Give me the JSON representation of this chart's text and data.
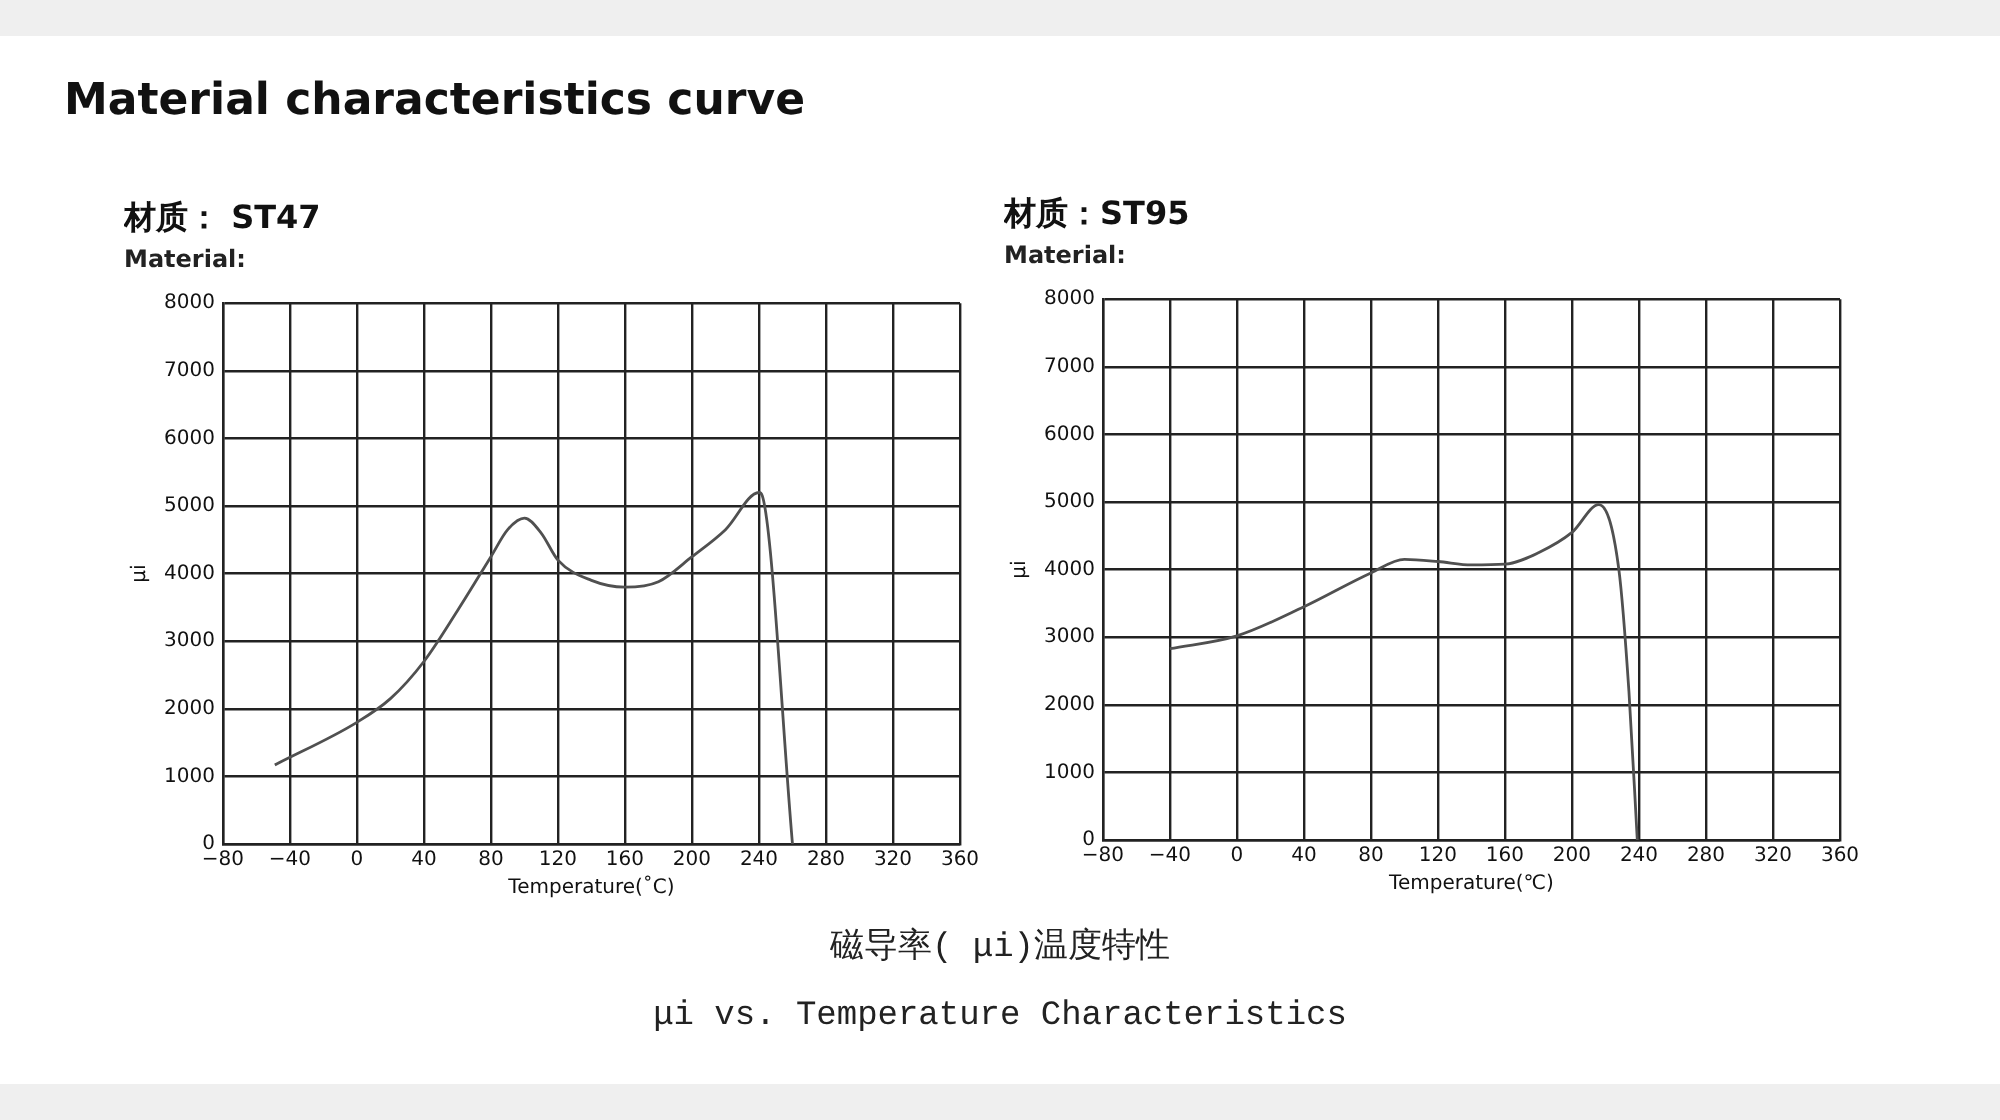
{
  "chart_data": [
    {
      "type": "other",
      "title": "Material characteristics curve"
    },
    {
      "type": "line",
      "title": "材质： ST47",
      "subtitle": "Material:",
      "xlabel": "Temperature(˚C)",
      "ylabel": "μi",
      "xlim": [
        -80,
        360
      ],
      "xticks": [
        -80,
        -40,
        0,
        40,
        80,
        120,
        160,
        200,
        240,
        280,
        320,
        360
      ],
      "ylim": [
        0,
        8000
      ],
      "yticks": [
        0,
        1000,
        2000,
        3000,
        4000,
        5000,
        6000,
        7000,
        8000
      ],
      "grid": true,
      "marker": "none",
      "color": "#505050",
      "x": [
        -49,
        0,
        20,
        40,
        60,
        80,
        90,
        100,
        110,
        120,
        140,
        160,
        180,
        200,
        220,
        240,
        242,
        260
      ],
      "values": [
        1170,
        1800,
        2150,
        2700,
        3450,
        4250,
        4650,
        4820,
        4600,
        4200,
        3900,
        3800,
        3880,
        4250,
        4650,
        5200,
        5150,
        0
      ]
    },
    {
      "type": "line",
      "title": "材质：ST95",
      "subtitle": "Material:",
      "xlabel": "Temperature(℃)",
      "ylabel": "μi",
      "xlim": [
        -80,
        360
      ],
      "xticks": [
        -80,
        -40,
        0,
        40,
        80,
        120,
        160,
        200,
        240,
        280,
        320,
        360
      ],
      "ylim": [
        0,
        8000
      ],
      "yticks": [
        0,
        1000,
        2000,
        3000,
        4000,
        5000,
        6000,
        7000,
        8000
      ],
      "grid": true,
      "marker": "none",
      "color": "#505050",
      "x": [
        -40,
        0,
        40,
        80,
        100,
        120,
        140,
        160,
        180,
        200,
        216,
        228,
        234,
        239
      ],
      "values": [
        2830,
        3020,
        3450,
        3950,
        4150,
        4120,
        4070,
        4080,
        4250,
        4550,
        4960,
        4000,
        2200,
        0
      ]
    },
    {
      "type": "other",
      "annotations": [
        "磁导率( μi)温度特性",
        "μi vs. Temperature Characteristics"
      ]
    }
  ]
}
